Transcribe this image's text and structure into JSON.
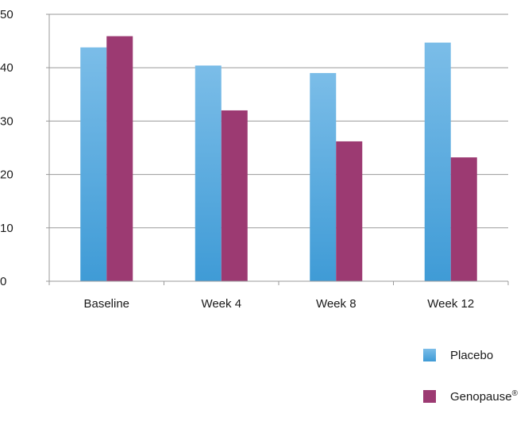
{
  "chart_data": {
    "type": "bar",
    "title": "",
    "xlabel": "",
    "ylabel": "",
    "categories": [
      "Baseline",
      "Week 4",
      "Week 8",
      "Week 12"
    ],
    "series": [
      {
        "name": "Placebo",
        "values": [
          43.8,
          40.4,
          39.0,
          44.7
        ],
        "color": "#5aaee0"
      },
      {
        "name": "Genopause",
        "name_suffix": "®",
        "values": [
          45.9,
          32.0,
          26.2,
          23.2
        ],
        "color": "#9c3a72"
      }
    ],
    "ylim": [
      0,
      50
    ],
    "yticks": [
      0,
      10,
      20,
      30,
      40,
      50
    ],
    "grid": true,
    "legend": "bottom-right"
  }
}
